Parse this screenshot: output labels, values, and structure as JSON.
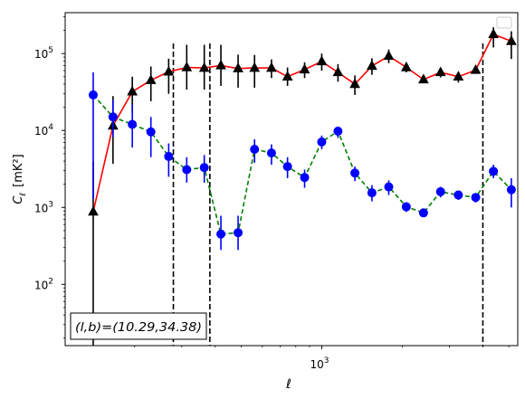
{
  "chart_data": {
    "type": "scatter",
    "xlabel": "ℓ",
    "ylabel_main": "C",
    "ylabel_sub": "ℓ",
    "ylabel_unit": "[mK²]",
    "xscale": "log",
    "yscale": "log",
    "xlim": [
      110,
      5400
    ],
    "ylim": [
      16,
      340000
    ],
    "x_tick_labels": [
      {
        "value": 1000,
        "base": "10",
        "exp": "3"
      }
    ],
    "y_tick_labels": [
      {
        "value": 100,
        "base": "10",
        "exp": "2"
      },
      {
        "value": 1000,
        "base": "10",
        "exp": "3"
      },
      {
        "value": 10000,
        "base": "10",
        "exp": "4"
      },
      {
        "value": 100000,
        "base": "10",
        "exp": "5"
      }
    ],
    "vlines": [
      279,
      382,
      4000
    ],
    "legend": {
      "placement": "top-right",
      "entries": []
    },
    "annotation": "(l,b)=(10.29,34.38)",
    "annotation_placement": "bottom-left",
    "series": [
      {
        "color": "#ff0000",
        "marker": "triangle",
        "marker_color": "#000000",
        "errbar_color": "#000000",
        "line_style": "solid",
        "x": [
          140,
          166,
          196,
          230,
          268,
          313,
          364,
          420,
          487,
          561,
          649,
          745,
          863,
          1000,
          1150,
          1330,
          1540,
          1780,
          2070,
          2400,
          2780,
          3240,
          3760,
          4380,
          5110
        ],
        "y": [
          880,
          11500,
          32000,
          45000,
          58000,
          66000,
          65000,
          70000,
          64000,
          65000,
          65000,
          50000,
          62000,
          79000,
          57000,
          40000,
          69000,
          93000,
          66000,
          46000,
          57000,
          50000,
          61000,
          178000,
          145000
        ],
        "y_lo": [
          10,
          3700,
          17000,
          24000,
          30000,
          34000,
          34000,
          38000,
          36000,
          36000,
          48000,
          38000,
          48000,
          60000,
          43000,
          29000,
          53000,
          75000,
          57000,
          41000,
          49000,
          42000,
          55000,
          120000,
          85000
        ],
        "y_hi": [
          4000,
          28000,
          50000,
          68000,
          86000,
          130000,
          130000,
          130000,
          97000,
          96000,
          84000,
          66000,
          77000,
          100000,
          73000,
          52000,
          87000,
          113000,
          76000,
          51000,
          65000,
          58000,
          66000,
          220000,
          195000
        ]
      },
      {
        "color": "#008000",
        "marker": "circle",
        "marker_color": "#0000ff",
        "errbar_color": "#0000ff",
        "line_style": "dashed",
        "x": [
          140,
          166,
          196,
          230,
          268,
          313,
          364,
          420,
          487,
          561,
          649,
          745,
          863,
          1000,
          1150,
          1330,
          1540,
          1780,
          2070,
          2400,
          2780,
          3240,
          3760,
          4380,
          5110
        ],
        "y": [
          29000,
          15000,
          12000,
          9600,
          4600,
          3100,
          3300,
          450,
          470,
          5700,
          5100,
          3400,
          2450,
          7100,
          9800,
          2800,
          1550,
          1850,
          1020,
          850,
          1600,
          1450,
          1350,
          2950,
          1700
        ],
        "y_lo": [
          1300,
          8200,
          6000,
          4500,
          2500,
          2100,
          2100,
          280,
          280,
          3800,
          3600,
          2400,
          1800,
          5700,
          8000,
          2200,
          1200,
          1450,
          870,
          760,
          1350,
          1250,
          1160,
          2400,
          1000
        ],
        "y_hi": [
          57000,
          25000,
          22000,
          15000,
          6800,
          4500,
          4800,
          780,
          780,
          7700,
          6600,
          4500,
          3100,
          8600,
          11200,
          3400,
          1950,
          2250,
          1170,
          940,
          1850,
          1650,
          1540,
          3600,
          2400
        ]
      }
    ]
  }
}
